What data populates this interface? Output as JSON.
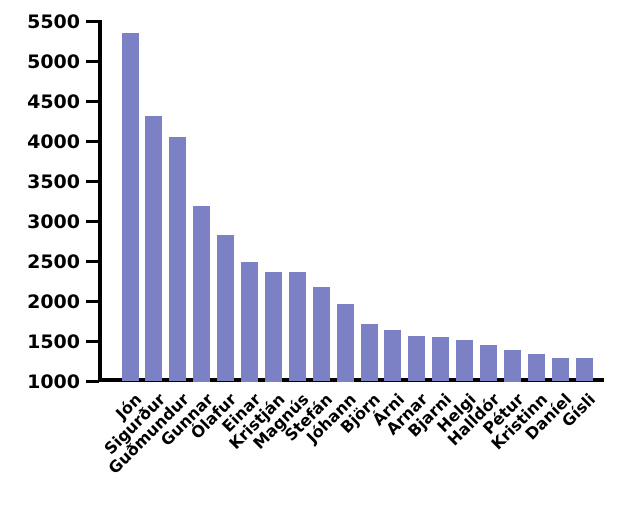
{
  "chart_data": {
    "type": "bar",
    "title": "",
    "xlabel": "",
    "ylabel": "",
    "categories": [
      "Jón",
      "Sigurður",
      "Guðmundur",
      "Gunnar",
      "Ólafur",
      "Einar",
      "Kristján",
      "Magnús",
      "Stefán",
      "Jóhann",
      "Björn",
      "Árni",
      "Arnar",
      "Bjarni",
      "Helgi",
      "Halldór",
      "Pétur",
      "Kristinn",
      "Daníel",
      "Gísli"
    ],
    "values": [
      5360,
      4315,
      4060,
      3200,
      2830,
      2500,
      2375,
      2370,
      2185,
      1975,
      1715,
      1640,
      1570,
      1560,
      1515,
      1455,
      1400,
      1340,
      1295,
      1290
    ],
    "ylim": [
      1000,
      5500
    ],
    "yticks": [
      1000,
      1500,
      2000,
      2500,
      3000,
      3500,
      4000,
      4500,
      5000,
      5500
    ],
    "grid": false,
    "legend": false,
    "x_tick_label_rotation_deg": 45,
    "colors": {
      "bar": "#7c80c5",
      "axis": "#000000",
      "text": "#000000",
      "background": "#ffffff"
    }
  }
}
